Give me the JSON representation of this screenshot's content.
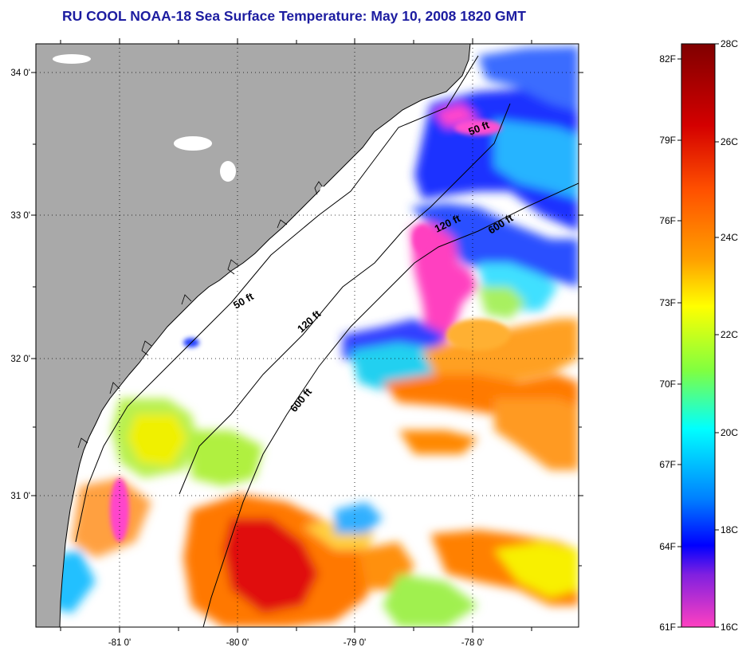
{
  "title": "RU COOL  NOAA-18  Sea Surface Temperature:  May 10, 2008 1820 GMT",
  "latitude_ticks": [
    "34 0'",
    "33 0'",
    "32 0'",
    "31 0'"
  ],
  "longitude_ticks": [
    "-81 0'",
    "-80 0'",
    "-79 0'",
    "-78 0'"
  ],
  "isobath_labels": [
    {
      "text": "50 ft",
      "id": "inshore"
    },
    {
      "text": "120 ft",
      "id": "inshore"
    },
    {
      "text": "600 ft",
      "id": "inshore"
    },
    {
      "text": "50 ft",
      "id": "offshore"
    },
    {
      "text": "120 ft",
      "id": "offshore"
    },
    {
      "text": "600 ft",
      "id": "offshore"
    }
  ],
  "colorbar": {
    "celsius": [
      "28C",
      "26C",
      "24C",
      "22C",
      "20C",
      "18C",
      "16C"
    ],
    "fahrenheit": [
      "82F",
      "79F",
      "76F",
      "73F",
      "70F",
      "67F",
      "64F",
      "61F"
    ],
    "stops": [
      "#800000",
      "#d40000",
      "#ff5000",
      "#ffa000",
      "#ffff00",
      "#80ff40",
      "#00ffff",
      "#0080ff",
      "#0000ff",
      "#8020e0",
      "#ff40c0"
    ]
  },
  "colors": {
    "land": "#a9a9a9",
    "ocean_cloud": "#ffffff",
    "title": "#1c1ca0"
  }
}
